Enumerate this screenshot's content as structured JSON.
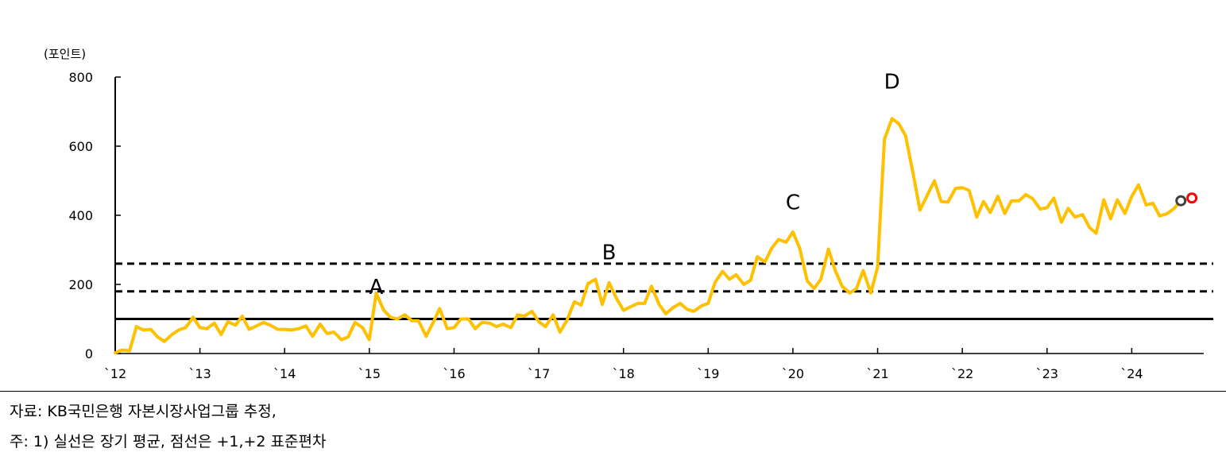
{
  "chart_data": {
    "type": "line",
    "title": "",
    "ylabel": "(포인트)",
    "xlabel": "",
    "ylim": [
      0,
      800
    ],
    "yticks": [
      "0",
      "200",
      "400",
      "600",
      "800"
    ],
    "xlim": [
      2012.0,
      2024.85
    ],
    "xtick_labels": [
      "`12",
      "`13",
      "`14",
      "`15",
      "`16",
      "`17",
      "`18",
      "`19",
      "`20",
      "`21",
      "`22",
      "`23",
      "`24"
    ],
    "line_color": "#FFC000",
    "reference_lines": [
      {
        "value": 100,
        "style": "solid"
      },
      {
        "value": 180,
        "style": "dashed"
      },
      {
        "value": 260,
        "style": "dashed"
      }
    ],
    "annotations": [
      {
        "label": "A",
        "x": 2015.08,
        "y": 195
      },
      {
        "label": "B",
        "x": 2017.83,
        "y": 295
      },
      {
        "label": "C",
        "x": 2020.0,
        "y": 440
      },
      {
        "label": "D",
        "x": 2021.17,
        "y": 790
      }
    ],
    "end_markers": [
      {
        "x": 2024.58,
        "y": 442,
        "color": "#404040"
      },
      {
        "x": 2024.71,
        "y": 450,
        "color": "#FF0000"
      }
    ],
    "series": [
      {
        "x": [
          2012.0,
          2012.08,
          2012.17,
          2012.25,
          2012.33,
          2012.42,
          2012.5,
          2012.58,
          2012.67,
          2012.75,
          2012.83,
          2012.92,
          2013.0,
          2013.08,
          2013.17,
          2013.25,
          2013.33,
          2013.42,
          2013.5,
          2013.58,
          2013.67,
          2013.75,
          2013.83,
          2013.92,
          2014.0,
          2014.08,
          2014.17,
          2014.25,
          2014.33,
          2014.42,
          2014.5,
          2014.58,
          2014.67,
          2014.75,
          2014.83,
          2014.92,
          2015.0,
          2015.08,
          2015.17,
          2015.25,
          2015.33,
          2015.42,
          2015.5,
          2015.58,
          2015.67,
          2015.75,
          2015.83,
          2015.92,
          2016.0,
          2016.08,
          2016.17,
          2016.25,
          2016.33,
          2016.42,
          2016.5,
          2016.58,
          2016.67,
          2016.75,
          2016.83,
          2016.92,
          2017.0,
          2017.08,
          2017.17,
          2017.25,
          2017.33,
          2017.42,
          2017.5,
          2017.58,
          2017.67,
          2017.75,
          2017.83,
          2017.92,
          2018.0,
          2018.08,
          2018.17,
          2018.25,
          2018.33,
          2018.42,
          2018.5,
          2018.58,
          2018.67,
          2018.75,
          2018.83,
          2018.92,
          2019.0,
          2019.08,
          2019.17,
          2019.25,
          2019.33,
          2019.42,
          2019.5,
          2019.58,
          2019.67,
          2019.75,
          2019.83,
          2019.92,
          2020.0,
          2020.08,
          2020.17,
          2020.25,
          2020.33,
          2020.42,
          2020.5,
          2020.58,
          2020.67,
          2020.75,
          2020.83,
          2020.92,
          2021.0,
          2021.08,
          2021.17,
          2021.25,
          2021.33,
          2021.42,
          2021.5,
          2021.58,
          2021.67,
          2021.75,
          2021.83,
          2021.92,
          2022.0,
          2022.08,
          2022.17,
          2022.25,
          2022.33,
          2022.42,
          2022.5,
          2022.58,
          2022.67,
          2022.75,
          2022.83,
          2022.92,
          2023.0,
          2023.08,
          2023.17,
          2023.25,
          2023.33,
          2023.42,
          2023.5,
          2023.58,
          2023.67,
          2023.75,
          2023.83,
          2023.92,
          2024.0,
          2024.08,
          2024.17,
          2024.25,
          2024.33,
          2024.42,
          2024.5,
          2024.58
        ],
        "values": [
          2,
          10,
          8,
          78,
          68,
          70,
          48,
          35,
          55,
          68,
          75,
          105,
          75,
          72,
          88,
          55,
          92,
          82,
          108,
          70,
          80,
          90,
          82,
          70,
          70,
          68,
          72,
          80,
          50,
          85,
          58,
          62,
          40,
          48,
          90,
          75,
          40,
          175,
          125,
          105,
          100,
          112,
          95,
          95,
          50,
          88,
          130,
          72,
          75,
          100,
          100,
          72,
          90,
          88,
          78,
          85,
          75,
          112,
          108,
          122,
          92,
          78,
          112,
          62,
          95,
          150,
          140,
          202,
          215,
          142,
          205,
          158,
          125,
          135,
          145,
          145,
          195,
          142,
          115,
          132,
          145,
          128,
          122,
          138,
          145,
          205,
          238,
          215,
          228,
          200,
          212,
          280,
          265,
          305,
          330,
          322,
          352,
          305,
          210,
          188,
          215,
          302,
          240,
          195,
          175,
          188,
          240,
          175,
          250,
          620,
          680,
          665,
          630,
          520,
          415,
          455,
          500,
          440,
          438,
          478,
          480,
          472,
          395,
          440,
          408,
          455,
          405,
          442,
          442,
          460,
          448,
          418,
          422,
          450,
          380,
          420,
          395,
          402,
          365,
          348,
          445,
          390,
          445,
          405,
          455,
          488,
          430,
          435,
          398,
          405,
          420,
          442
        ]
      }
    ]
  },
  "notes": {
    "source": "자료: KB국민은행 자본시장사업그룹 추정,",
    "footnote": "주: 1) 실선은 장기 평균, 점선은 +1,+2 표준편차"
  }
}
